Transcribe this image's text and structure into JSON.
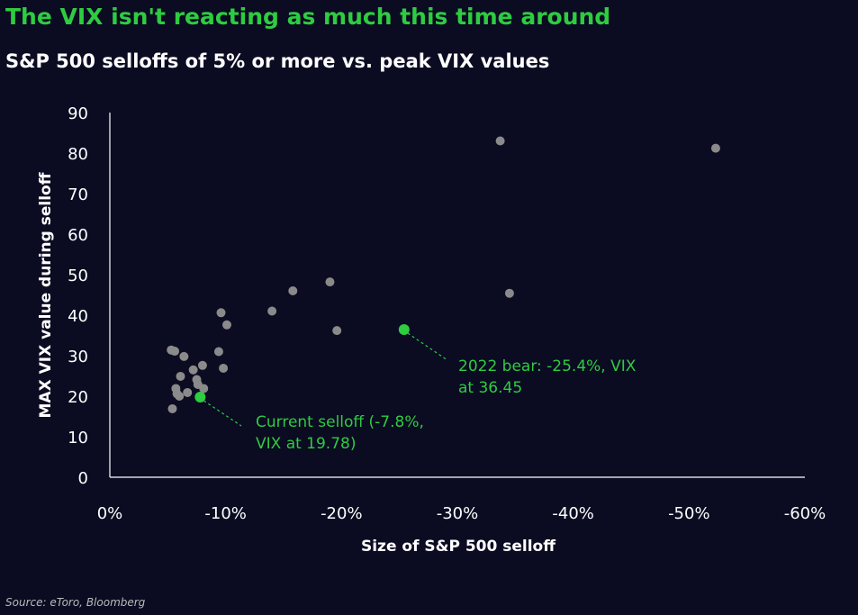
{
  "header": {
    "title": "The VIX isn't reacting as much this time around",
    "subtitle": "S&P 500 selloffs of 5% or more vs. peak VIX values"
  },
  "footer": {
    "source": "Source: eToro, Bloomberg"
  },
  "colors": {
    "background": "#0b0b22",
    "title": "#2ecc40",
    "highlight": "#2ecc40",
    "points": "#8a8a8a",
    "axis": "#ffffff"
  },
  "chart_data": {
    "type": "scatter",
    "xlabel": "Size of S&P 500 selloff",
    "ylabel": "MAX VIX value during selloff",
    "xlim": [
      0,
      -60
    ],
    "ylim": [
      0,
      90
    ],
    "x_ticks": [
      "0%",
      "-10%",
      "-20%",
      "-30%",
      "-40%",
      "-50%",
      "-60%"
    ],
    "y_ticks": [
      "0",
      "10",
      "20",
      "30",
      "40",
      "50",
      "60",
      "70",
      "80",
      "90"
    ],
    "grid": false,
    "series": [
      {
        "points": [
          [
            -5.3,
            31.4
          ],
          [
            -5.6,
            31.1
          ],
          [
            -6.4,
            29.8
          ],
          [
            -5.4,
            16.9
          ],
          [
            -5.7,
            21.9
          ],
          [
            -5.8,
            20.6
          ],
          [
            -6.0,
            20.0
          ],
          [
            -6.1,
            24.9
          ],
          [
            -6.7,
            20.9
          ],
          [
            -7.2,
            26.5
          ],
          [
            -7.5,
            24.1
          ],
          [
            -7.6,
            22.9
          ],
          [
            -8.0,
            27.6
          ],
          [
            -8.1,
            21.9
          ],
          [
            -9.4,
            31.0
          ],
          [
            -9.6,
            40.6
          ],
          [
            -9.8,
            26.9
          ],
          [
            -10.1,
            37.6
          ],
          [
            -14.0,
            41.0
          ],
          [
            -15.8,
            46.0
          ],
          [
            -19.0,
            48.2
          ],
          [
            -19.6,
            36.2
          ],
          [
            -33.7,
            83.0
          ],
          [
            -34.5,
            45.4
          ],
          [
            -52.3,
            81.2
          ]
        ]
      },
      {
        "highlight": true,
        "points": [
          [
            -7.8,
            19.78
          ],
          [
            -25.4,
            36.45
          ]
        ]
      }
    ],
    "annotations": [
      {
        "lines": [
          "Current selloff (-7.8%,",
          "VIX at 19.78)"
        ],
        "x": -7.8,
        "y": 19.78
      },
      {
        "lines": [
          "2022 bear: -25.4%, VIX",
          "at 36.45"
        ],
        "x": -25.4,
        "y": 36.45
      }
    ]
  }
}
